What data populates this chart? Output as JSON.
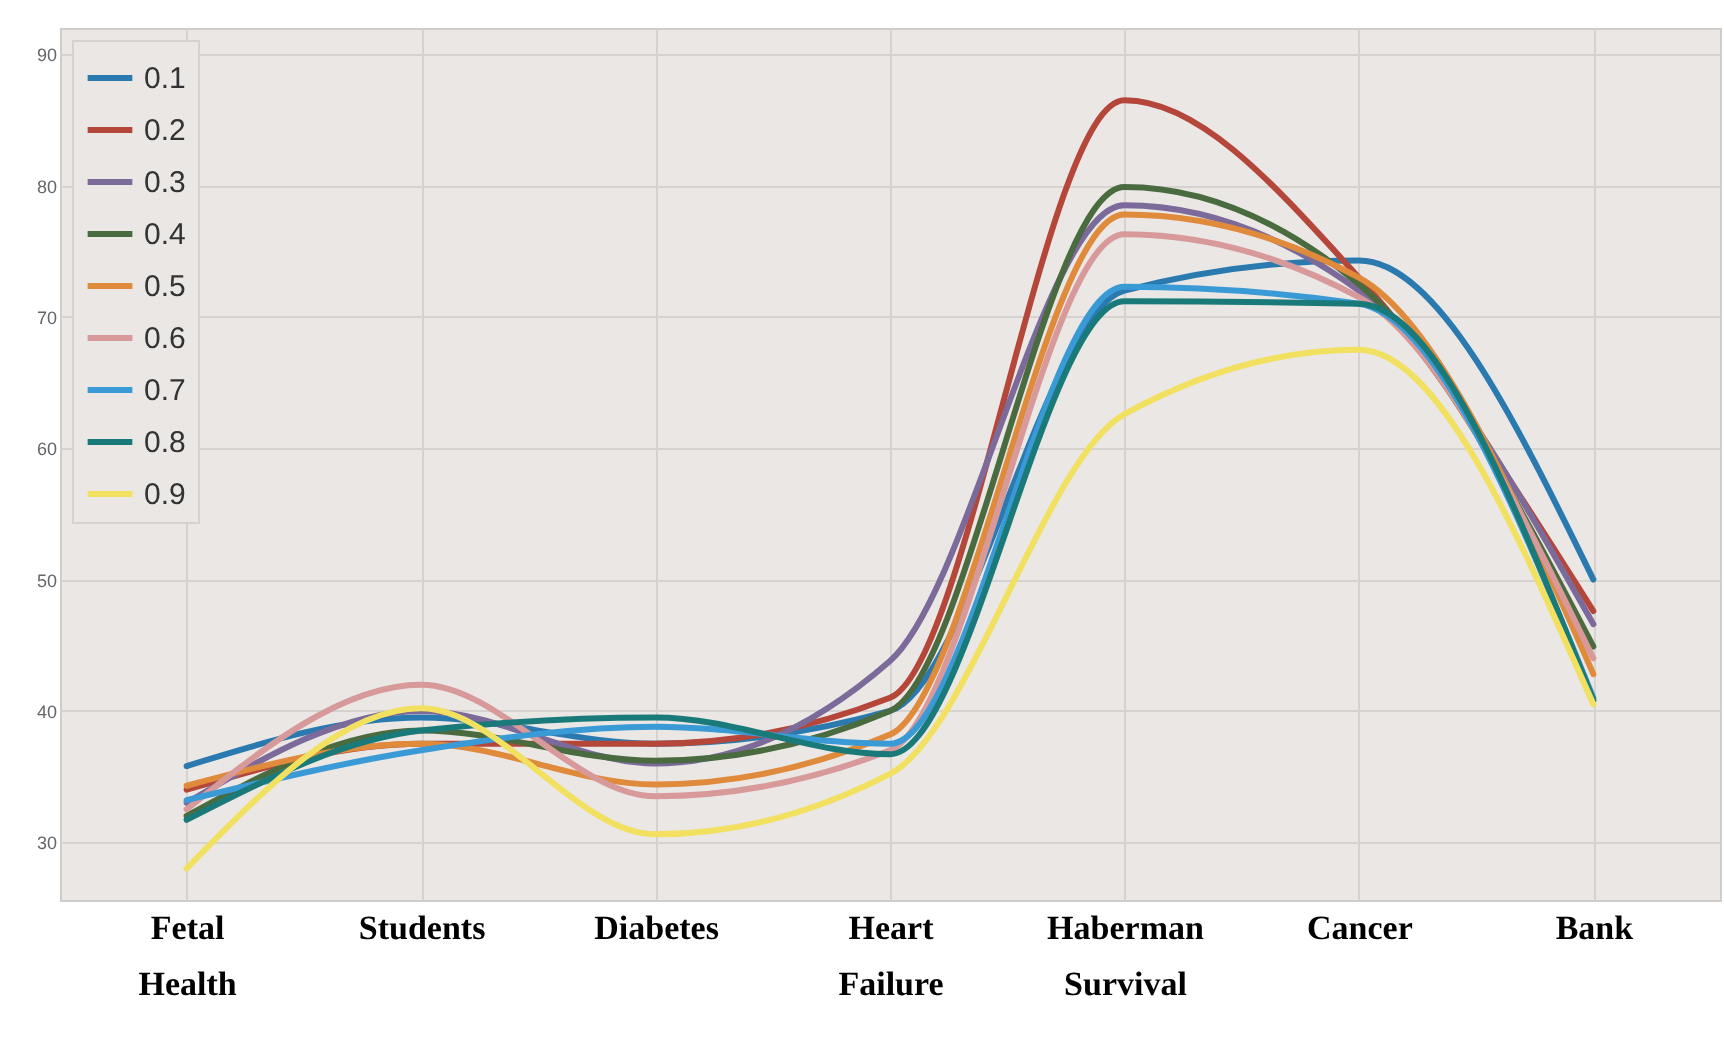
{
  "chart_data": {
    "type": "line",
    "categories": [
      "Fetal Health",
      "Students",
      "Diabetes",
      "Heart Failure",
      "Haberman Survival",
      "Cancer",
      "Bank"
    ],
    "series": [
      {
        "name": "0.1",
        "color": "#2a7ab0",
        "values": [
          35.8,
          39.5,
          37.5,
          40,
          72,
          74.3,
          50
        ]
      },
      {
        "name": "0.2",
        "color": "#b5463a",
        "values": [
          34,
          37.5,
          37.5,
          41,
          86.5,
          73,
          47.6
        ]
      },
      {
        "name": "0.3",
        "color": "#7b6a9a",
        "values": [
          33,
          40,
          36,
          43.8,
          78.5,
          72,
          46.6
        ]
      },
      {
        "name": "0.4",
        "color": "#4a6b3f",
        "values": [
          32,
          38.5,
          36.2,
          40,
          79.9,
          72.5,
          44.9
        ]
      },
      {
        "name": "0.5",
        "color": "#e08a3c",
        "values": [
          34.3,
          37.5,
          34.4,
          38.2,
          77.8,
          73,
          42.8
        ]
      },
      {
        "name": "0.6",
        "color": "#d8999a",
        "values": [
          32.5,
          42,
          33.5,
          37,
          76.3,
          71.5,
          44
        ]
      },
      {
        "name": "0.7",
        "color": "#3a9ad6",
        "values": [
          33.2,
          37,
          38.8,
          37.5,
          72.3,
          71,
          41
        ]
      },
      {
        "name": "0.8",
        "color": "#1a7a7a",
        "values": [
          31.7,
          38.5,
          39.5,
          36.7,
          71.2,
          71,
          40.8
        ]
      },
      {
        "name": "0.9",
        "color": "#f2e060",
        "values": [
          28,
          40.2,
          30.6,
          35.2,
          62.6,
          67.5,
          40.5
        ]
      }
    ],
    "ylim": [
      25.6,
      92
    ],
    "yticks": [
      30,
      40,
      50,
      60,
      70,
      80,
      90
    ],
    "grid": true,
    "legend": "top left"
  }
}
